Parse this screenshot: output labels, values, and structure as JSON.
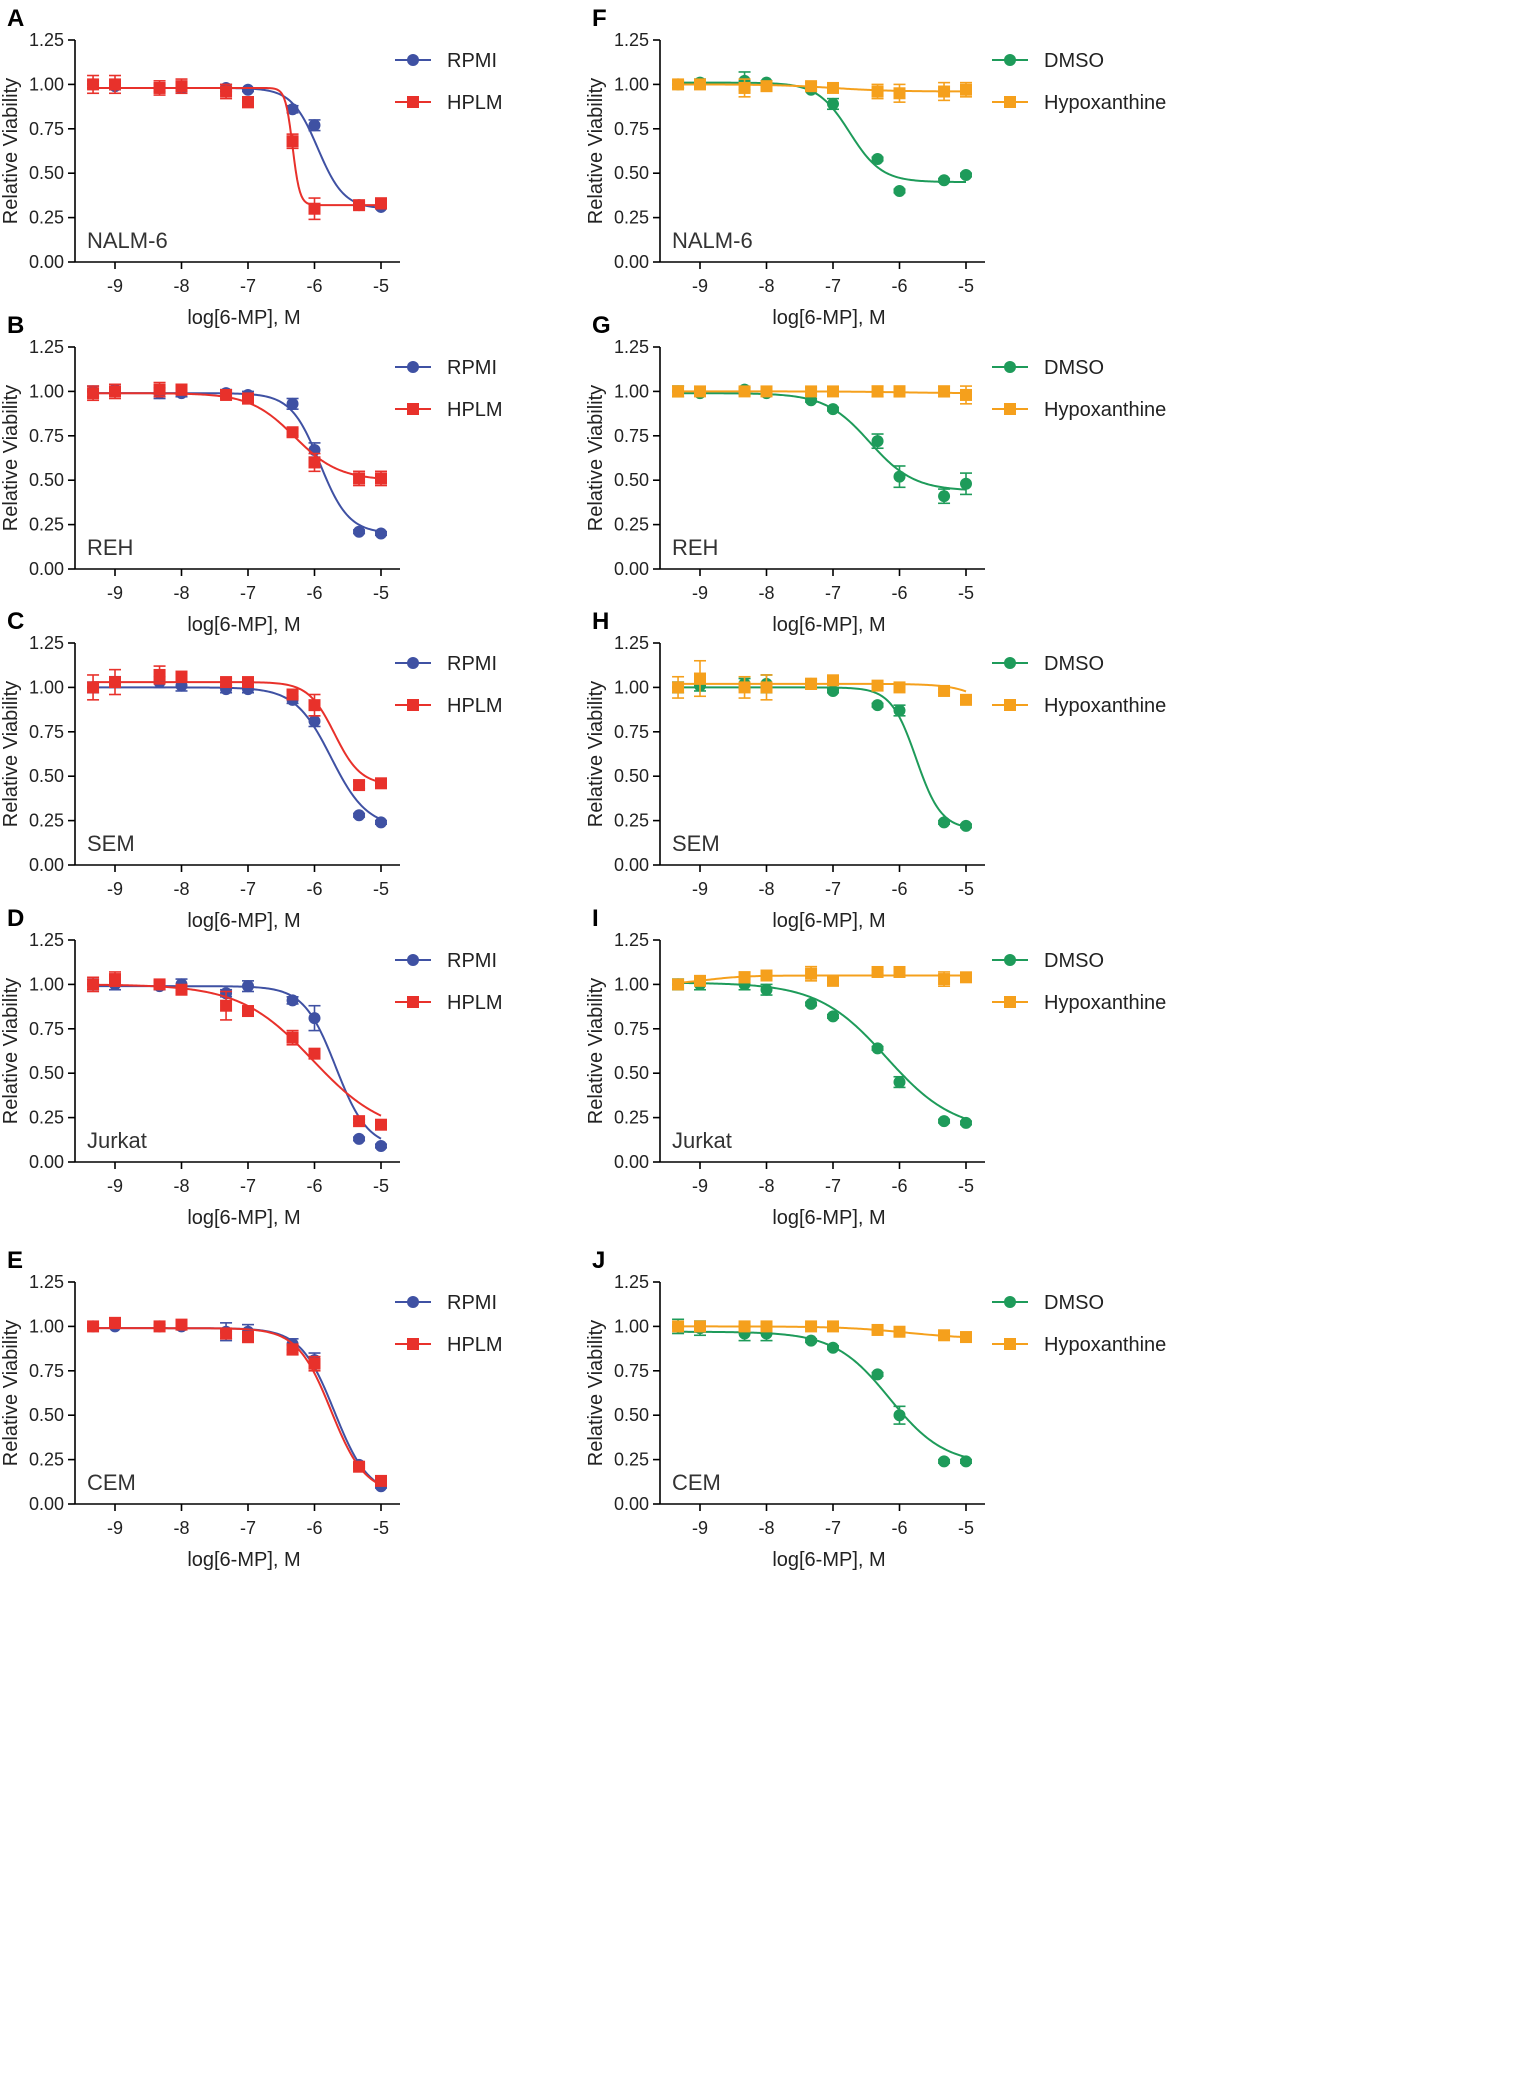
{
  "figure": {
    "xlabel": "log[6-MP], M",
    "ylabel": "Relative Viability",
    "xticks": [
      "-9",
      "-8",
      "-7",
      "-6",
      "-5"
    ],
    "yticks": [
      "0.00",
      "0.25",
      "0.50",
      "0.75",
      "1.00",
      "1.25"
    ],
    "xlim": [
      -9.5,
      -4.7
    ],
    "ylim": [
      0,
      1.25
    ]
  },
  "colors": {
    "RPMI": "#3f51a3",
    "HPLM": "#e8312b",
    "DMSO": "#1e9b5a",
    "Hypoxanthine": "#f5a01c",
    "axis": "#000000",
    "text": "#222222"
  },
  "chart_data": [
    {
      "panel": "A",
      "cell_line": "NALM-6",
      "type": "line",
      "xlabel": "log[6-MP], M",
      "ylabel": "Relative Viability",
      "ylim": [
        0,
        1.25
      ],
      "series": [
        {
          "name": "RPMI",
          "marker": "circle",
          "x": [
            -9.33,
            -9.0,
            -8.33,
            -8.0,
            -7.33,
            -7.0,
            -6.33,
            -6.0,
            -5.33,
            -5.0
          ],
          "y": [
            1.0,
            0.99,
            0.98,
            0.98,
            0.98,
            0.97,
            0.86,
            0.77,
            0.32,
            0.31
          ],
          "err": [
            0.02,
            0.02,
            0.02,
            0.02,
            0.02,
            0.01,
            0.02,
            0.03,
            0.01,
            0.01
          ],
          "fit": {
            "top": 0.98,
            "bottom": 0.3,
            "logIC50": -5.95,
            "hill": 2.2
          }
        },
        {
          "name": "HPLM",
          "marker": "square",
          "x": [
            -9.33,
            -9.0,
            -8.33,
            -8.0,
            -7.33,
            -7.0,
            -6.33,
            -6.0,
            -5.33,
            -5.0
          ],
          "y": [
            1.0,
            1.0,
            0.98,
            0.99,
            0.96,
            0.9,
            0.68,
            0.3,
            0.32,
            0.33
          ],
          "err": [
            0.05,
            0.05,
            0.04,
            0.04,
            0.04,
            0.03,
            0.04,
            0.06,
            0.02,
            0.03
          ],
          "fit": {
            "top": 0.98,
            "bottom": 0.32,
            "logIC50": -6.33,
            "hill": 8
          }
        }
      ]
    },
    {
      "panel": "B",
      "cell_line": "REH",
      "type": "line",
      "xlabel": "log[6-MP], M",
      "ylabel": "Relative Viability",
      "ylim": [
        0,
        1.25
      ],
      "series": [
        {
          "name": "RPMI",
          "marker": "circle",
          "x": [
            -9.33,
            -9.0,
            -8.33,
            -8.0,
            -7.33,
            -7.0,
            -6.33,
            -6.0,
            -5.33,
            -5.0
          ],
          "y": [
            1.0,
            1.01,
            0.99,
            0.99,
            0.99,
            0.98,
            0.93,
            0.67,
            0.21,
            0.2
          ],
          "err": [
            0.03,
            0.03,
            0.03,
            0.02,
            0.02,
            0.02,
            0.03,
            0.04,
            0.01,
            0.01
          ],
          "fit": {
            "top": 0.99,
            "bottom": 0.2,
            "logIC50": -5.92,
            "hill": 2.0
          }
        },
        {
          "name": "HPLM",
          "marker": "square",
          "x": [
            -9.33,
            -9.0,
            -8.33,
            -8.0,
            -7.33,
            -7.0,
            -6.33,
            -6.0,
            -5.33,
            -5.0
          ],
          "y": [
            0.99,
            1.0,
            1.01,
            1.01,
            0.98,
            0.96,
            0.77,
            0.6,
            0.51,
            0.51
          ],
          "err": [
            0.04,
            0.04,
            0.04,
            0.03,
            0.02,
            0.03,
            0.02,
            0.05,
            0.04,
            0.04
          ],
          "fit": {
            "top": 0.99,
            "bottom": 0.5,
            "logIC50": -6.3,
            "hill": 1.3
          }
        }
      ]
    },
    {
      "panel": "C",
      "cell_line": "SEM",
      "type": "line",
      "xlabel": "log[6-MP], M",
      "ylabel": "Relative Viability",
      "ylim": [
        0,
        1.25
      ],
      "series": [
        {
          "name": "RPMI",
          "marker": "circle",
          "x": [
            -9.33,
            -9.0,
            -8.33,
            -8.0,
            -7.33,
            -7.0,
            -6.33,
            -6.0,
            -5.33,
            -5.0
          ],
          "y": [
            1.0,
            1.03,
            1.03,
            1.01,
            0.99,
            0.99,
            0.93,
            0.81,
            0.28,
            0.24
          ],
          "err": [
            0.03,
            0.03,
            0.03,
            0.03,
            0.02,
            0.02,
            0.02,
            0.03,
            0.01,
            0.01
          ],
          "fit": {
            "top": 1.0,
            "bottom": 0.21,
            "logIC50": -5.75,
            "hill": 1.6
          }
        },
        {
          "name": "HPLM",
          "marker": "square",
          "x": [
            -9.33,
            -9.0,
            -8.33,
            -8.0,
            -7.33,
            -7.0,
            -6.33,
            -6.0,
            -5.33,
            -5.0
          ],
          "y": [
            1.0,
            1.03,
            1.07,
            1.06,
            1.03,
            1.03,
            0.96,
            0.9,
            0.45,
            0.46
          ],
          "err": [
            0.07,
            0.07,
            0.05,
            0.03,
            0.02,
            0.02,
            0.02,
            0.06,
            0.02,
            0.02
          ],
          "fit": {
            "top": 1.03,
            "bottom": 0.45,
            "logIC50": -5.7,
            "hill": 2.2
          }
        }
      ]
    },
    {
      "panel": "D",
      "cell_line": "Jurkat",
      "type": "line",
      "xlabel": "log[6-MP], M",
      "ylabel": "Relative Viability",
      "ylim": [
        0,
        1.25
      ],
      "series": [
        {
          "name": "RPMI",
          "marker": "circle",
          "x": [
            -9.33,
            -9.0,
            -8.33,
            -8.0,
            -7.33,
            -7.0,
            -6.33,
            -6.0,
            -5.33,
            -5.0
          ],
          "y": [
            1.0,
            1.0,
            0.99,
            1.0,
            0.95,
            0.99,
            0.91,
            0.81,
            0.13,
            0.09
          ],
          "err": [
            0.03,
            0.03,
            0.02,
            0.03,
            0.02,
            0.03,
            0.02,
            0.07,
            0.01,
            0.01
          ],
          "fit": {
            "top": 0.99,
            "bottom": 0.08,
            "logIC50": -5.68,
            "hill": 1.8
          }
        },
        {
          "name": "HPLM",
          "marker": "square",
          "x": [
            -9.33,
            -9.0,
            -8.33,
            -8.0,
            -7.33,
            -7.0,
            -6.33,
            -6.0,
            -5.33,
            -5.0
          ],
          "y": [
            1.0,
            1.03,
            1.0,
            0.97,
            0.88,
            0.85,
            0.7,
            0.61,
            0.23,
            0.21
          ],
          "err": [
            0.04,
            0.04,
            0.02,
            0.02,
            0.08,
            0.02,
            0.04,
            0.02,
            0.01,
            0.01
          ],
          "fit": {
            "top": 1.0,
            "bottom": 0.15,
            "logIC50": -6.03,
            "hill": 0.8
          }
        }
      ]
    },
    {
      "panel": "E",
      "cell_line": "CEM",
      "type": "line",
      "xlabel": "log[6-MP], M",
      "ylabel": "Relative Viability",
      "ylim": [
        0,
        1.25
      ],
      "series": [
        {
          "name": "RPMI",
          "marker": "circle",
          "x": [
            -9.33,
            -9.0,
            -8.33,
            -8.0,
            -7.33,
            -7.0,
            -6.33,
            -6.0,
            -5.33,
            -5.0
          ],
          "y": [
            1.0,
            1.0,
            1.0,
            1.0,
            0.97,
            0.97,
            0.9,
            0.81,
            0.22,
            0.1
          ],
          "err": [
            0.01,
            0.01,
            0.01,
            0.01,
            0.05,
            0.04,
            0.03,
            0.04,
            0.01,
            0.01
          ],
          "fit": {
            "top": 0.99,
            "bottom": 0.05,
            "logIC50": -5.7,
            "hill": 1.7
          }
        },
        {
          "name": "HPLM",
          "marker": "square",
          "x": [
            -9.33,
            -9.0,
            -8.33,
            -8.0,
            -7.33,
            -7.0,
            -6.33,
            -6.0,
            -5.33,
            -5.0
          ],
          "y": [
            1.0,
            1.02,
            1.0,
            1.01,
            0.96,
            0.94,
            0.87,
            0.79,
            0.21,
            0.13
          ],
          "err": [
            0.01,
            0.01,
            0.01,
            0.01,
            0.03,
            0.03,
            0.03,
            0.04,
            0.01,
            0.01
          ],
          "fit": {
            "top": 0.99,
            "bottom": 0.06,
            "logIC50": -5.75,
            "hill": 1.7
          }
        }
      ]
    },
    {
      "panel": "F",
      "cell_line": "NALM-6",
      "type": "line",
      "xlabel": "log[6-MP], M",
      "ylabel": "Relative Viability",
      "ylim": [
        0,
        1.25
      ],
      "series": [
        {
          "name": "DMSO",
          "marker": "circle",
          "x": [
            -9.33,
            -9.0,
            -8.33,
            -8.0,
            -7.33,
            -7.0,
            -6.33,
            -6.0,
            -5.33,
            -5.0
          ],
          "y": [
            1.0,
            1.01,
            1.02,
            1.01,
            0.97,
            0.89,
            0.58,
            0.4,
            0.46,
            0.49
          ],
          "err": [
            0.02,
            0.02,
            0.05,
            0.01,
            0.01,
            0.03,
            0.01,
            0.01,
            0.01,
            0.01
          ],
          "fit": {
            "top": 1.01,
            "bottom": 0.45,
            "logIC50": -6.75,
            "hill": 1.8
          }
        },
        {
          "name": "Hypoxanthine",
          "marker": "square",
          "x": [
            -9.33,
            -9.0,
            -8.33,
            -8.0,
            -7.33,
            -7.0,
            -6.33,
            -6.0,
            -5.33,
            -5.0
          ],
          "y": [
            1.0,
            1.0,
            0.98,
            0.99,
            0.99,
            0.98,
            0.96,
            0.95,
            0.96,
            0.97
          ],
          "err": [
            0.02,
            0.02,
            0.05,
            0.02,
            0.02,
            0.02,
            0.04,
            0.05,
            0.05,
            0.04
          ],
          "fit": {
            "top": 1.0,
            "bottom": 0.96,
            "logIC50": -7.0,
            "hill": 1
          }
        }
      ]
    },
    {
      "panel": "G",
      "cell_line": "REH",
      "type": "line",
      "xlabel": "log[6-MP], M",
      "ylabel": "Relative Viability",
      "ylim": [
        0,
        1.25
      ],
      "series": [
        {
          "name": "DMSO",
          "marker": "circle",
          "x": [
            -9.33,
            -9.0,
            -8.33,
            -8.0,
            -7.33,
            -7.0,
            -6.33,
            -6.0,
            -5.33,
            -5.0
          ],
          "y": [
            1.0,
            0.99,
            1.01,
            0.99,
            0.95,
            0.9,
            0.72,
            0.52,
            0.41,
            0.48
          ],
          "err": [
            0.03,
            0.01,
            0.01,
            0.01,
            0.01,
            0.01,
            0.04,
            0.06,
            0.04,
            0.06
          ],
          "fit": {
            "top": 0.99,
            "bottom": 0.44,
            "logIC50": -6.45,
            "hill": 1.3
          }
        },
        {
          "name": "Hypoxanthine",
          "marker": "square",
          "x": [
            -9.33,
            -9.0,
            -8.33,
            -8.0,
            -7.33,
            -7.0,
            -6.33,
            -6.0,
            -5.33,
            -5.0
          ],
          "y": [
            1.0,
            1.0,
            1.0,
            1.0,
            1.0,
            1.0,
            1.0,
            1.0,
            1.0,
            0.98
          ],
          "err": [
            0.03,
            0.02,
            0.02,
            0.02,
            0.02,
            0.02,
            0.03,
            0.03,
            0.03,
            0.05
          ],
          "fit": {
            "top": 1.0,
            "bottom": 0.99,
            "logIC50": -6.0,
            "hill": 1
          }
        }
      ]
    },
    {
      "panel": "H",
      "cell_line": "SEM",
      "type": "line",
      "xlabel": "log[6-MP], M",
      "ylabel": "Relative Viability",
      "ylim": [
        0,
        1.25
      ],
      "series": [
        {
          "name": "DMSO",
          "marker": "circle",
          "x": [
            -9.33,
            -9.0,
            -8.33,
            -8.0,
            -7.33,
            -7.0,
            -6.33,
            -6.0,
            -5.33,
            -5.0
          ],
          "y": [
            1.0,
            1.01,
            1.02,
            1.02,
            1.02,
            0.98,
            0.9,
            0.87,
            0.24,
            0.22
          ],
          "err": [
            0.03,
            0.03,
            0.03,
            0.05,
            0.02,
            0.01,
            0.01,
            0.03,
            0.01,
            0.01
          ],
          "fit": {
            "top": 1.0,
            "bottom": 0.2,
            "logIC50": -5.75,
            "hill": 2.3
          }
        },
        {
          "name": "Hypoxanthine",
          "marker": "square",
          "x": [
            -9.33,
            -9.0,
            -8.33,
            -8.0,
            -7.33,
            -7.0,
            -6.33,
            -6.0,
            -5.33,
            -5.0
          ],
          "y": [
            1.0,
            1.05,
            1.0,
            1.0,
            1.02,
            1.04,
            1.01,
            1.0,
            0.98,
            0.93
          ],
          "err": [
            0.06,
            0.1,
            0.06,
            0.07,
            0.03,
            0.02,
            0.01,
            0.01,
            0.01,
            0.01
          ],
          "fit": {
            "top": 1.02,
            "bottom": 0.5,
            "logIC50": -4.3,
            "hill": 1.5
          }
        }
      ]
    },
    {
      "panel": "I",
      "cell_line": "Jurkat",
      "type": "line",
      "xlabel": "log[6-MP], M",
      "ylabel": "Relative Viability",
      "ylim": [
        0,
        1.25
      ],
      "series": [
        {
          "name": "DMSO",
          "marker": "circle",
          "x": [
            -9.33,
            -9.0,
            -8.33,
            -8.0,
            -7.33,
            -7.0,
            -6.33,
            -6.0,
            -5.33,
            -5.0
          ],
          "y": [
            1.0,
            1.0,
            1.0,
            0.97,
            0.89,
            0.82,
            0.64,
            0.45,
            0.23,
            0.22
          ],
          "err": [
            0.03,
            0.03,
            0.03,
            0.03,
            0.01,
            0.01,
            0.01,
            0.03,
            0.01,
            0.01
          ],
          "fit": {
            "top": 1.01,
            "bottom": 0.17,
            "logIC50": -6.2,
            "hill": 0.85
          }
        },
        {
          "name": "Hypoxanthine",
          "marker": "square",
          "x": [
            -9.33,
            -9.0,
            -8.33,
            -8.0,
            -7.33,
            -7.0,
            -6.33,
            -6.0,
            -5.33,
            -5.0
          ],
          "y": [
            1.0,
            1.02,
            1.04,
            1.05,
            1.06,
            1.02,
            1.07,
            1.07,
            1.03,
            1.04
          ],
          "err": [
            0.02,
            0.02,
            0.03,
            0.02,
            0.04,
            0.01,
            0.01,
            0.02,
            0.04,
            0.01
          ],
          "fit": {
            "top": 1.0,
            "bottom": 1.05,
            "logIC50": -8.9,
            "hill": 1.5
          }
        }
      ]
    },
    {
      "panel": "J",
      "cell_line": "CEM",
      "type": "line",
      "xlabel": "log[6-MP], M",
      "ylabel": "Relative Viability",
      "ylim": [
        0,
        1.25
      ],
      "series": [
        {
          "name": "DMSO",
          "marker": "circle",
          "x": [
            -9.33,
            -9.0,
            -8.33,
            -8.0,
            -7.33,
            -7.0,
            -6.33,
            -6.0,
            -5.33,
            -5.0
          ],
          "y": [
            1.0,
            0.99,
            0.96,
            0.96,
            0.92,
            0.88,
            0.73,
            0.5,
            0.24,
            0.24
          ],
          "err": [
            0.04,
            0.04,
            0.04,
            0.04,
            0.01,
            0.01,
            0.01,
            0.05,
            0.01,
            0.01
          ],
          "fit": {
            "top": 0.97,
            "bottom": 0.22,
            "logIC50": -6.15,
            "hill": 1.05
          }
        },
        {
          "name": "Hypoxanthine",
          "marker": "square",
          "x": [
            -9.33,
            -9.0,
            -8.33,
            -8.0,
            -7.33,
            -7.0,
            -6.33,
            -6.0,
            -5.33,
            -5.0
          ],
          "y": [
            1.0,
            1.0,
            1.0,
            1.0,
            1.0,
            1.0,
            0.98,
            0.97,
            0.95,
            0.94
          ],
          "err": [
            0.01,
            0.01,
            0.01,
            0.01,
            0.01,
            0.01,
            0.01,
            0.01,
            0.01,
            0.01
          ],
          "fit": {
            "top": 1.0,
            "bottom": 0.93,
            "logIC50": -5.9,
            "hill": 0.9
          }
        }
      ]
    }
  ]
}
